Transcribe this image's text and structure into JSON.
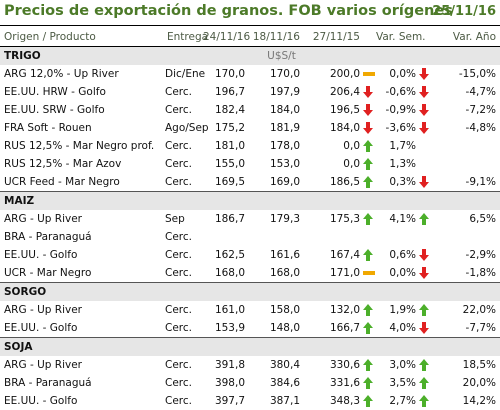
{
  "header": {
    "title": "Precios de exportación de granos. FOB varios orígenes",
    "date": "25/11/16"
  },
  "columns": [
    "Origen / Producto",
    "Entrega",
    "24/11/16",
    "18/11/16",
    "27/11/15",
    "Var. Sem.",
    "Var. Año"
  ],
  "unit_label": "U$S/t",
  "colors": {
    "title": "#4c7a28",
    "up": "#4caf2a",
    "down": "#e02020",
    "neutral": "#f0a800",
    "section_bg": "#e6e6e6"
  },
  "sections": [
    {
      "name": "TRIGO",
      "rows": [
        {
          "producto": "ARG 12,0% - Up River",
          "entrega": "Dic/Ene",
          "c1": "170,0",
          "c2": "170,0",
          "c3": "200,0",
          "ic3": "neutral",
          "vs": "0,0%",
          "ivs": "down",
          "va": "-15,0%"
        },
        {
          "producto": "EE.UU. HRW - Golfo",
          "entrega": "Cerc.",
          "c1": "196,7",
          "c2": "197,9",
          "c3": "206,4",
          "ic3": "down",
          "vs": "-0,6%",
          "ivs": "down",
          "va": "-4,7%"
        },
        {
          "producto": "EE.UU. SRW - Golfo",
          "entrega": "Cerc.",
          "c1": "182,4",
          "c2": "184,0",
          "c3": "196,5",
          "ic3": "down",
          "vs": "-0,9%",
          "ivs": "down",
          "va": "-7,2%"
        },
        {
          "producto": "FRA Soft - Rouen",
          "entrega": "Ago/Sep",
          "c1": "175,2",
          "c2": "181,9",
          "c3": "184,0",
          "ic3": "down",
          "vs": "-3,6%",
          "ivs": "down",
          "va": "-4,8%"
        },
        {
          "producto": "RUS 12,5% - Mar Negro prof.",
          "entrega": "Cerc.",
          "c1": "181,0",
          "c2": "178,0",
          "c3": "0,0",
          "ic3": "up",
          "vs": "1,7%",
          "ivs": "",
          "va": ""
        },
        {
          "producto": "RUS 12,5% - Mar Azov",
          "entrega": "Cerc.",
          "c1": "155,0",
          "c2": "153,0",
          "c3": "0,0",
          "ic3": "up",
          "vs": "1,3%",
          "ivs": "",
          "va": ""
        },
        {
          "producto": "UCR Feed - Mar Negro",
          "entrega": "Cerc.",
          "c1": "169,5",
          "c2": "169,0",
          "c3": "186,5",
          "ic3": "up",
          "vs": "0,3%",
          "ivs": "down",
          "va": "-9,1%"
        }
      ]
    },
    {
      "name": "MAIZ",
      "rows": [
        {
          "producto": "ARG - Up River",
          "entrega": "Sep",
          "c1": "186,7",
          "c2": "179,3",
          "c3": "175,3",
          "ic3": "up",
          "vs": "4,1%",
          "ivs": "up",
          "va": "6,5%"
        },
        {
          "producto": "BRA - Paranaguá",
          "entrega": "Cerc.",
          "c1": "",
          "c2": "",
          "c3": "",
          "ic3": "",
          "vs": "",
          "ivs": "",
          "va": ""
        },
        {
          "producto": "EE.UU. - Golfo",
          "entrega": "Cerc.",
          "c1": "162,5",
          "c2": "161,6",
          "c3": "167,4",
          "ic3": "up",
          "vs": "0,6%",
          "ivs": "down",
          "va": "-2,9%"
        },
        {
          "producto": "UCR - Mar Negro",
          "entrega": "Cerc.",
          "c1": "168,0",
          "c2": "168,0",
          "c3": "171,0",
          "ic3": "neutral",
          "vs": "0,0%",
          "ivs": "down",
          "va": "-1,8%"
        }
      ]
    },
    {
      "name": "SORGO",
      "rows": [
        {
          "producto": "ARG - Up River",
          "entrega": "Cerc.",
          "c1": "161,0",
          "c2": "158,0",
          "c3": "132,0",
          "ic3": "up",
          "vs": "1,9%",
          "ivs": "up",
          "va": "22,0%"
        },
        {
          "producto": "EE.UU. - Golfo",
          "entrega": "Cerc.",
          "c1": "153,9",
          "c2": "148,0",
          "c3": "166,7",
          "ic3": "up",
          "vs": "4,0%",
          "ivs": "down",
          "va": "-7,7%"
        }
      ]
    },
    {
      "name": "SOJA",
      "rows": [
        {
          "producto": "ARG - Up River",
          "entrega": "Cerc.",
          "c1": "391,8",
          "c2": "380,4",
          "c3": "330,6",
          "ic3": "up",
          "vs": "3,0%",
          "ivs": "up",
          "va": "18,5%"
        },
        {
          "producto": "BRA - Paranaguá",
          "entrega": "Cerc.",
          "c1": "398,0",
          "c2": "384,6",
          "c3": "331,6",
          "ic3": "up",
          "vs": "3,5%",
          "ivs": "up",
          "va": "20,0%"
        },
        {
          "producto": "EE.UU. - Golfo",
          "entrega": "Cerc.",
          "c1": "397,7",
          "c2": "387,1",
          "c3": "348,3",
          "ic3": "up",
          "vs": "2,7%",
          "ivs": "up",
          "va": "14,2%"
        }
      ]
    }
  ]
}
